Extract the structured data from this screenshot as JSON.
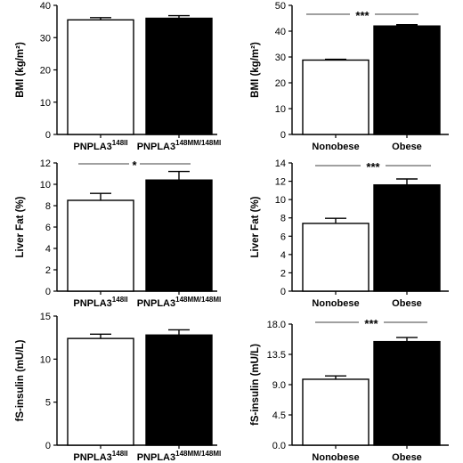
{
  "chart_data": [
    {
      "type": "bar",
      "ylabel": "BMI (kg/m²)",
      "ylim": [
        0,
        40
      ],
      "yticks": [
        "0",
        "10",
        "20",
        "30",
        "40"
      ],
      "categories": [
        {
          "base": "PNPLA3",
          "sup": "148II"
        },
        {
          "base": "PNPLA3",
          "sup": "148MM/148MI"
        }
      ],
      "values": [
        35.5,
        36.0
      ],
      "errors": [
        0.7,
        0.8
      ],
      "colors": [
        "#ffffff",
        "#000000"
      ],
      "significance": ""
    },
    {
      "type": "bar",
      "ylabel": "BMI (kg/m²)",
      "ylim": [
        0,
        50
      ],
      "yticks": [
        "0",
        "10",
        "20",
        "30",
        "40",
        "50"
      ],
      "categories": [
        {
          "base": "Nonobese",
          "sup": ""
        },
        {
          "base": "Obese",
          "sup": ""
        }
      ],
      "values": [
        28.8,
        42.0
      ],
      "errors": [
        0.3,
        0.5
      ],
      "colors": [
        "#ffffff",
        "#000000"
      ],
      "significance": "***"
    },
    {
      "type": "bar",
      "ylabel": "Liver Fat (%)",
      "ylim": [
        0,
        12
      ],
      "yticks": [
        "0",
        "2",
        "4",
        "6",
        "8",
        "10",
        "12"
      ],
      "categories": [
        {
          "base": "PNPLA3",
          "sup": "148II"
        },
        {
          "base": "PNPLA3",
          "sup": "148MM/148MI"
        }
      ],
      "values": [
        8.5,
        10.4
      ],
      "errors": [
        0.65,
        0.8
      ],
      "colors": [
        "#ffffff",
        "#000000"
      ],
      "significance": "*"
    },
    {
      "type": "bar",
      "ylabel": "Liver Fat (%)",
      "ylim": [
        0,
        14
      ],
      "yticks": [
        "0",
        "2",
        "4",
        "6",
        "8",
        "10",
        "12",
        "14"
      ],
      "categories": [
        {
          "base": "Nonobese",
          "sup": ""
        },
        {
          "base": "Obese",
          "sup": ""
        }
      ],
      "values": [
        7.4,
        11.6
      ],
      "errors": [
        0.55,
        0.65
      ],
      "colors": [
        "#ffffff",
        "#000000"
      ],
      "significance": "***"
    },
    {
      "type": "bar",
      "ylabel": "fS-insulin (mU/L)",
      "ylim": [
        0,
        15
      ],
      "yticks": [
        "0",
        "5",
        "10",
        "15"
      ],
      "categories": [
        {
          "base": "PNPLA3",
          "sup": "148II"
        },
        {
          "base": "PNPLA3",
          "sup": "148MM/148MI"
        }
      ],
      "values": [
        12.4,
        12.8
      ],
      "errors": [
        0.5,
        0.6
      ],
      "colors": [
        "#ffffff",
        "#000000"
      ],
      "significance": ""
    },
    {
      "type": "bar",
      "ylabel": "fS-insulin (mU/L)",
      "ylim": [
        0,
        18
      ],
      "yticks": [
        "0.0",
        "4.5",
        "9.0",
        "13.5",
        "18.0"
      ],
      "categories": [
        {
          "base": "Nonobese",
          "sup": ""
        },
        {
          "base": "Obese",
          "sup": ""
        }
      ],
      "values": [
        9.8,
        15.4
      ],
      "errors": [
        0.5,
        0.6
      ],
      "colors": [
        "#ffffff",
        "#000000"
      ],
      "significance": "***"
    }
  ]
}
